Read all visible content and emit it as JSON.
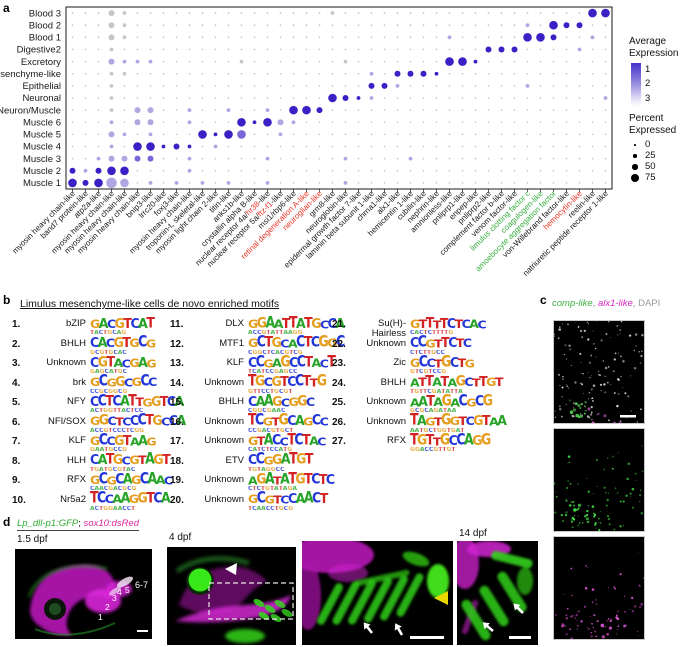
{
  "colors": {
    "dot_high_expression_blue": "#3a21c6",
    "dot_low_gray": "#c7c7c7",
    "label_black": "#1a1a1a",
    "label_red": "#e8362a",
    "label_green": "#3cb043",
    "gfp_green": "#35d01e",
    "dsred_magenta": "#d41ed4",
    "dapi_gray": "#d8d8d8",
    "yellow_arrowhead": "#e8d800"
  },
  "panel_a": {
    "label": "a",
    "legend": {
      "avg_title_line1": "Average",
      "avg_title_line2": "Expression",
      "avg_ticks": [
        "1",
        "2",
        "3"
      ],
      "pct_title_line1": "Percent",
      "pct_title_line2": "Expressed",
      "pct_ticks": [
        "0",
        "25",
        "50",
        "75"
      ]
    }
  },
  "chart_data": {
    "type": "scatter",
    "subtype": "dot-plot (gene expression by cell cluster)",
    "legend_position": "right",
    "grid": false,
    "size_key_percent_expressed": [
      0,
      25,
      50,
      75
    ],
    "color_key_average_expression": [
      1,
      2,
      3
    ],
    "rows_top_to_bottom": [
      "Blood 3",
      "Blood 2",
      "Blood 1",
      "Digestive2",
      "Excretory",
      "Mesenchyme-like",
      "Epithelial",
      "Neuronal",
      "Neuron/Muscle",
      "Muscle 6",
      "Muscle 5",
      "Muscle 4",
      "Muscle 3",
      "Muscle 2",
      "Muscle 1"
    ],
    "label_colors": {
      "k": "#1a1a1a",
      "r": "#e8362a",
      "g": "#3cb043"
    },
    "columns": [
      {
        "parts": [
          [
            "myosin heavy chain-like",
            "k"
          ]
        ]
      },
      {
        "parts": [
          [
            "band7 protein-like",
            "k"
          ]
        ]
      },
      {
        "parts": [
          [
            "atp2a-like",
            "k"
          ]
        ]
      },
      {
        "parts": [
          [
            "myosin heavy chain-like",
            "k"
          ]
        ]
      },
      {
        "parts": [
          [
            "myosin heavy chain-like",
            "k"
          ]
        ]
      },
      {
        "parts": [
          [
            "myosin heavy chain-like",
            "k"
          ]
        ]
      },
      {
        "parts": [
          [
            "bnip3-like",
            "k"
          ]
        ]
      },
      {
        "parts": [
          [
            "lrrc20-like",
            "k"
          ]
        ]
      },
      {
        "parts": [
          [
            "foxj3-like",
            "k"
          ]
        ]
      },
      {
        "parts": [
          [
            "myosin heavy chain-like",
            "k"
          ]
        ]
      },
      {
        "parts": [
          [
            "troponin-t, skeletal-like",
            "k"
          ]
        ]
      },
      {
        "parts": [
          [
            "myosin light chain 2-like",
            "k"
          ]
        ]
      },
      {
        "parts": [
          [
            "titin-like",
            "k"
          ]
        ]
      },
      {
        "parts": [
          [
            "anks1b-like",
            "k"
          ]
        ]
      },
      {
        "parts": [
          [
            "crystallin alpha B-like",
            "k"
          ]
        ]
      },
      {
        "parts": [
          [
            "nuclear receptor 4a/",
            "k"
          ],
          [
            "hr38",
            "r"
          ],
          [
            "-like",
            "k"
          ]
        ]
      },
      {
        "parts": [
          [
            "nuclear receptor 5a/",
            "k"
          ],
          [
            "ftz-f1",
            "r"
          ],
          [
            "-like",
            "k"
          ]
        ]
      },
      {
        "parts": [
          [
            "msi1/rbp6-like",
            "k"
          ]
        ]
      },
      {
        "parts": [
          [
            "retinal degeneration A-like",
            "r"
          ]
        ]
      },
      {
        "parts": [
          [
            "neuroglian-like",
            "r"
          ]
        ]
      },
      {
        "parts": [
          [
            "grm8-like",
            "k"
          ]
        ]
      },
      {
        "parts": [
          [
            "neuroglobin-like",
            "k"
          ]
        ]
      },
      {
        "parts": [
          [
            "epidermal growth factor 7-like",
            "k"
          ]
        ]
      },
      {
        "parts": [
          [
            "laminin beta subunit 1-like",
            "k"
          ]
        ]
      },
      {
        "parts": [
          [
            "chrna1-like",
            "k"
          ]
        ]
      },
      {
        "parts": [
          [
            "alx1-like",
            "k"
          ]
        ]
      },
      {
        "parts": [
          [
            "hemicentin 1-like",
            "k"
          ]
        ]
      },
      {
        "parts": [
          [
            "cubilin-like",
            "k"
          ]
        ]
      },
      {
        "parts": [
          [
            "nephrin-like",
            "k"
          ]
        ]
      },
      {
        "parts": [
          [
            "amnionless-like",
            "k"
          ]
        ]
      },
      {
        "parts": [
          [
            "pnliprp1-like",
            "k"
          ]
        ]
      },
      {
        "parts": [
          [
            "enpep-like",
            "k"
          ]
        ]
      },
      {
        "parts": [
          [
            "pnliprp2-like",
            "k"
          ]
        ]
      },
      {
        "parts": [
          [
            "complement factor b-like",
            "k"
          ]
        ]
      },
      {
        "parts": [
          [
            "venom factor-like",
            "k"
          ]
        ]
      },
      {
        "parts": [
          [
            "limulus clotting factor c",
            "g"
          ]
        ]
      },
      {
        "parts": [
          [
            "coagulogen-like",
            "g"
          ]
        ]
      },
      {
        "parts": [
          [
            "amoebocyte aggregation factor",
            "g"
          ]
        ]
      },
      {
        "parts": [
          [
            "von-Willebrand factor-like",
            "k"
          ]
        ]
      },
      {
        "parts": [
          [
            "hemocytin-like",
            "r"
          ]
        ]
      },
      {
        "parts": [
          [
            "reelin-like",
            "k"
          ]
        ]
      },
      {
        "parts": [
          [
            "natriuretic peptide receptor 1-like",
            "k"
          ]
        ]
      }
    ],
    "default_dot": [
      0,
      0
    ],
    "dot_note": "sparse entries are [column(1-42), sizeClass 0-4 ~ percent expressed, colorClass 0-3 ~ expression]",
    "dots_sparse": {
      "Blood 3": [
        [
          4,
          2,
          0
        ],
        [
          5,
          1,
          0
        ],
        [
          21,
          1,
          0
        ],
        [
          41,
          3,
          3
        ],
        [
          42,
          3,
          3
        ]
      ],
      "Blood 2": [
        [
          4,
          2,
          0
        ],
        [
          5,
          1,
          0
        ],
        [
          36,
          1,
          1
        ],
        [
          38,
          3,
          3
        ],
        [
          39,
          2,
          3
        ],
        [
          40,
          2,
          3
        ]
      ],
      "Blood 1": [
        [
          4,
          2,
          0
        ],
        [
          5,
          1,
          0
        ],
        [
          30,
          1,
          1
        ],
        [
          36,
          3,
          3
        ],
        [
          37,
          3,
          3
        ],
        [
          38,
          2,
          3
        ],
        [
          41,
          1,
          1
        ]
      ],
      "Digestive2": [
        [
          4,
          1,
          0
        ],
        [
          33,
          2,
          3
        ],
        [
          34,
          2,
          3
        ],
        [
          35,
          2,
          3
        ],
        [
          40,
          1,
          1
        ]
      ],
      "Excretory": [
        [
          4,
          2,
          1
        ],
        [
          5,
          1,
          1
        ],
        [
          6,
          1,
          1
        ],
        [
          7,
          1,
          1
        ],
        [
          14,
          1,
          0
        ],
        [
          22,
          1,
          0
        ],
        [
          30,
          3,
          3
        ],
        [
          31,
          3,
          3
        ],
        [
          32,
          1,
          3
        ]
      ],
      "Mesenchyme-like": [
        [
          4,
          1,
          0
        ],
        [
          5,
          1,
          0
        ],
        [
          24,
          1,
          1
        ],
        [
          26,
          2,
          3
        ],
        [
          27,
          2,
          3
        ],
        [
          28,
          2,
          3
        ],
        [
          29,
          1,
          3
        ]
      ],
      "Epithelial": [
        [
          4,
          1,
          0
        ],
        [
          24,
          2,
          3
        ],
        [
          25,
          2,
          3
        ],
        [
          26,
          1,
          1
        ],
        [
          36,
          1,
          1
        ]
      ],
      "Neuronal": [
        [
          4,
          1,
          0
        ],
        [
          21,
          3,
          3
        ],
        [
          22,
          2,
          3
        ],
        [
          23,
          1,
          3
        ],
        [
          24,
          1,
          1
        ],
        [
          42,
          1,
          1
        ]
      ],
      "Neuron/Muscle": [
        [
          4,
          1,
          0
        ],
        [
          6,
          2,
          1
        ],
        [
          7,
          2,
          1
        ],
        [
          10,
          1,
          1
        ],
        [
          13,
          1,
          1
        ],
        [
          16,
          1,
          1
        ],
        [
          18,
          3,
          3
        ],
        [
          19,
          3,
          3
        ],
        [
          20,
          2,
          3
        ]
      ],
      "Muscle 6": [
        [
          4,
          1,
          1
        ],
        [
          6,
          2,
          1
        ],
        [
          7,
          2,
          1
        ],
        [
          10,
          1,
          1
        ],
        [
          14,
          3,
          3
        ],
        [
          15,
          1,
          3
        ],
        [
          16,
          3,
          3
        ],
        [
          17,
          2,
          1
        ],
        [
          18,
          1,
          1
        ]
      ],
      "Muscle 5": [
        [
          4,
          2,
          1
        ],
        [
          5,
          1,
          1
        ],
        [
          7,
          1,
          1
        ],
        [
          11,
          3,
          3
        ],
        [
          12,
          1,
          3
        ],
        [
          13,
          3,
          3
        ],
        [
          14,
          3,
          2
        ],
        [
          17,
          1,
          1
        ]
      ],
      "Muscle 4": [
        [
          4,
          1,
          1
        ],
        [
          6,
          3,
          3
        ],
        [
          7,
          3,
          3
        ],
        [
          8,
          1,
          3
        ],
        [
          9,
          2,
          3
        ],
        [
          10,
          1,
          3
        ],
        [
          12,
          1,
          1
        ]
      ],
      "Muscle 3": [
        [
          3,
          1,
          1
        ],
        [
          4,
          2,
          1
        ],
        [
          5,
          2,
          1
        ],
        [
          6,
          2,
          2
        ],
        [
          7,
          2,
          2
        ],
        [
          10,
          1,
          1
        ],
        [
          16,
          1,
          1
        ],
        [
          22,
          1,
          1
        ],
        [
          27,
          1,
          1
        ]
      ],
      "Muscle 2": [
        [
          1,
          2,
          3
        ],
        [
          2,
          1,
          1
        ],
        [
          3,
          2,
          3
        ],
        [
          4,
          3,
          3
        ],
        [
          5,
          3,
          3
        ],
        [
          10,
          1,
          1
        ]
      ],
      "Muscle 1": [
        [
          1,
          3,
          3
        ],
        [
          2,
          2,
          3
        ],
        [
          3,
          3,
          3
        ],
        [
          4,
          4,
          1
        ],
        [
          5,
          3,
          1
        ],
        [
          7,
          1,
          1
        ],
        [
          9,
          1,
          1
        ],
        [
          11,
          1,
          1
        ],
        [
          13,
          1,
          1
        ],
        [
          16,
          1,
          1
        ],
        [
          22,
          1,
          1
        ]
      ]
    }
  },
  "panel_b": {
    "label": "b",
    "title": "Limulus mesenchyme-like cells de novo enriched motifs",
    "motifs": [
      {
        "n": "1.",
        "name": "bZIP",
        "seq": "GACGTCAT"
      },
      {
        "n": "2.",
        "name": "BHLH",
        "seq": "CACGTGCG"
      },
      {
        "n": "3.",
        "name": "Unknown",
        "seq": "CGTACGAG"
      },
      {
        "n": "4.",
        "name": "brk",
        "seq": "GCGGCGCC"
      },
      {
        "n": "5.",
        "name": "NFY",
        "seq": "CCTCATTGGTCA"
      },
      {
        "n": "6.",
        "name": "NFI/SOX",
        "seq": "GGCTCCCTGCCA"
      },
      {
        "n": "7.",
        "name": "KLF",
        "seq": "GCCGTAAG"
      },
      {
        "n": "8.",
        "name": "HLH",
        "seq": "CATGCGTAGT"
      },
      {
        "n": "9.",
        "name": "RFX",
        "seq": "GCGCAGCAAC"
      },
      {
        "n": "10.",
        "name": "Nr5a2",
        "seq": "TCCAAGGTCA"
      },
      {
        "n": "11.",
        "name": "DLX",
        "seq": "GGAATTATGCCA"
      },
      {
        "n": "12.",
        "name": "MTF1",
        "seq": "GCTGCACTCGGC"
      },
      {
        "n": "13.",
        "name": "KLF",
        "seq": "CCGAGCCTACT"
      },
      {
        "n": "14.",
        "name": "Unknown",
        "seq": "TGCGTCCTTG"
      },
      {
        "n": "15.",
        "name": "BHLH",
        "seq": "CAAGCGGC"
      },
      {
        "n": "16.",
        "name": "Unknown",
        "seq": "TCGTGCAGCC"
      },
      {
        "n": "17.",
        "name": "Unknown",
        "seq": "GTACCTCTAC"
      },
      {
        "n": "18.",
        "name": "ETV",
        "seq": "CCGGATGT"
      },
      {
        "n": "19.",
        "name": "Unknown",
        "seq": "AGATATGTCTC"
      },
      {
        "n": "20.",
        "name": "Unknown",
        "seq": "GCGTCCAACT"
      },
      {
        "n": "21.",
        "name": "Su(H)-Hairless",
        "seq": "GTTTTCTCAC"
      },
      {
        "n": "22.",
        "name": "Unknown",
        "seq": "CCGTTCTC"
      },
      {
        "n": "23.",
        "name": "Zic",
        "seq": "GCCTGCTG"
      },
      {
        "n": "24.",
        "name": "BHLH",
        "seq": "ATTATAGCTTGT"
      },
      {
        "n": "25.",
        "name": "Unknown",
        "seq": "AATAGACGCG"
      },
      {
        "n": "26.",
        "name": "Unknown",
        "seq": "TAGTGGTCGTAA"
      },
      {
        "n": "27.",
        "name": "RFX",
        "seq": "TGTTGCCAGG"
      }
    ]
  },
  "panel_c": {
    "label": "c",
    "title_parts": [
      [
        "comp-like",
        "#3cb043",
        "i"
      ],
      [
        ", ",
        "#888888",
        ""
      ],
      [
        "alx1-like",
        "#d626c8",
        "i"
      ],
      [
        ", ",
        "#888888",
        ""
      ],
      [
        "DAPI",
        "#9a9a9a",
        ""
      ]
    ],
    "images": [
      {
        "name": "merge-channel-image"
      },
      {
        "name": "comp-like-channel-image"
      },
      {
        "name": "alx1-like-channel-image"
      }
    ]
  },
  "panel_d": {
    "label": "d",
    "header_parts": [
      [
        "Lp_dll-p1:GFP",
        "#2fae2f",
        "i"
      ],
      [
        "; ",
        "#111111",
        ""
      ],
      [
        "sox10:dsRed",
        "#e0269a",
        "i"
      ]
    ],
    "figures": [
      {
        "label": "1.5 dpf",
        "arch_numbers": [
          "1",
          "2",
          "3",
          "4",
          "5",
          "6-7"
        ]
      },
      {
        "label": "4 dpf"
      },
      {
        "label": ""
      },
      {
        "label": "14 dpf"
      }
    ]
  }
}
